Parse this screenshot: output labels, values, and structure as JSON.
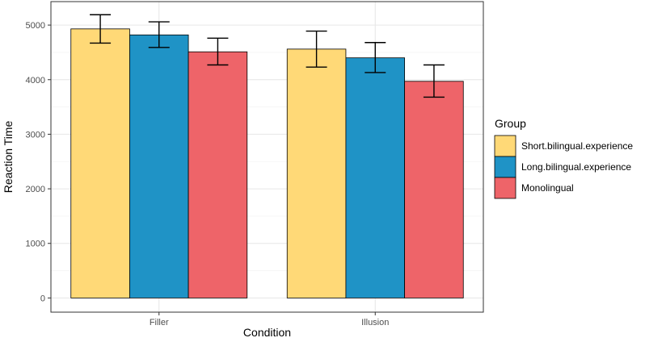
{
  "chart_data": {
    "type": "bar",
    "xlabel": "Condition",
    "ylabel": "Reaction Time",
    "categories": [
      "Filler",
      "Illusion"
    ],
    "ylim": [
      -260,
      5430
    ],
    "yticks": [
      0,
      1000,
      2000,
      3000,
      4000,
      5000
    ],
    "grid": true,
    "legend": {
      "title": "Group",
      "position": "right"
    },
    "series": [
      {
        "name": "Short.bilingual.experience",
        "color": "#FFD977",
        "values": [
          4930,
          4560
        ],
        "error_low": [
          4670,
          4230
        ],
        "error_high": [
          5190,
          4890
        ]
      },
      {
        "name": "Long.bilingual.experience",
        "color": "#1F93C6",
        "values": [
          4820,
          4400
        ],
        "error_low": [
          4590,
          4130
        ],
        "error_high": [
          5060,
          4680
        ]
      },
      {
        "name": "Monolingual",
        "color": "#EE6469",
        "values": [
          4510,
          3970
        ],
        "error_low": [
          4270,
          3680
        ],
        "error_high": [
          4760,
          4270
        ]
      }
    ]
  }
}
